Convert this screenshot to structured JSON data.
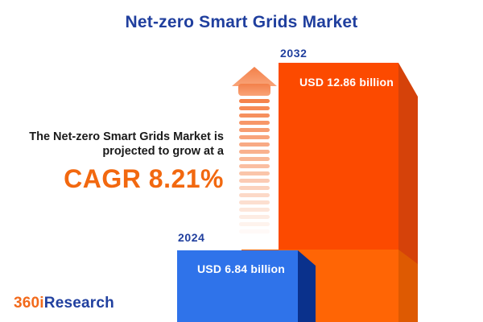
{
  "title": "Net-zero Smart Grids Market",
  "description": {
    "line1": "The Net-zero Smart Grids Market is",
    "line2": "projected to grow at a"
  },
  "cagr": {
    "label": "CAGR 8.21%",
    "value_percent": 8.21
  },
  "logo": {
    "prefix": "360i",
    "suffix": "Research"
  },
  "colors": {
    "title_blue": "#203F9E",
    "accent_orange": "#F2680F",
    "text_dark": "#1A1A1A",
    "bar_2032_front": "#FC4A00",
    "bar_2032_side": "#D5420A",
    "bar_2032_base_front": "#FF6505",
    "bar_2032_base_side": "#DE5A02",
    "bar_2024_front": "#2F73EA",
    "bar_2024_side": "#0A318C",
    "arrow_top": "#F3804A",
    "arrow_bottom": "#F9A478",
    "arrow_stripe": "#F5834B",
    "label_white": "#FFFFFF"
  },
  "chart_data": {
    "type": "bar",
    "title": "Net-zero Smart Grids Market",
    "categories": [
      "2024",
      "2032"
    ],
    "values": [
      6.84,
      12.86
    ],
    "unit": "USD billion",
    "value_labels": [
      "USD 6.84 billion",
      "USD 12.86 billion"
    ],
    "cagr_percent": 8.21,
    "xlabel": "",
    "ylabel": "",
    "legend": "none",
    "axes": "none (pictorial 3D bars with data labels, growth arrow annotation)"
  }
}
